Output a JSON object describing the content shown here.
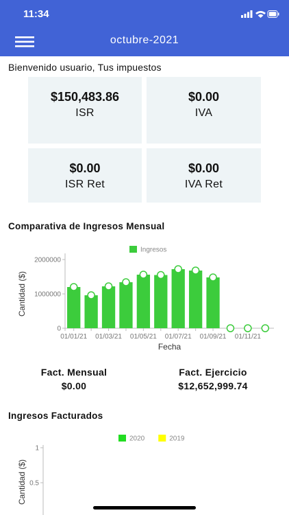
{
  "status_bar": {
    "time": "11:34"
  },
  "header": {
    "title": "octubre-2021"
  },
  "welcome": "Bienvenido usuario, Tus impuestos",
  "cards": [
    {
      "value": "$150,483.86",
      "label": "ISR"
    },
    {
      "value": "$0.00",
      "label": "IVA"
    },
    {
      "value": "$0.00",
      "label": "ISR Ret"
    },
    {
      "value": "$0.00",
      "label": "IVA Ret"
    }
  ],
  "monthly_chart": {
    "title": "Comparativa de Ingresos Mensual",
    "chart_data": {
      "type": "bar",
      "xlabel": "Fecha",
      "ylabel": "Cantidad ($)",
      "categories": [
        "01/01/21",
        null,
        "01/03/21",
        null,
        "01/05/21",
        null,
        "01/07/21",
        null,
        "01/09/21",
        null,
        "01/11/21",
        null
      ],
      "series": [
        {
          "name": "Ingresos",
          "color": "#3ccc3c",
          "values": [
            1200000,
            960000,
            1220000,
            1340000,
            1560000,
            1550000,
            1720000,
            1680000,
            1480000,
            0,
            0,
            0
          ]
        }
      ],
      "ylim": [
        0,
        2100000
      ],
      "yticks": [
        0,
        1000000,
        2000000
      ]
    }
  },
  "totals": [
    {
      "label": "Fact. Mensual",
      "value": "$0.00"
    },
    {
      "label": "Fact. Ejercicio",
      "value": "$12,652,999.74"
    }
  ],
  "invoiced_chart": {
    "title": "Ingresos Facturados",
    "chart_data": {
      "type": "bar",
      "ylabel": "Cantidad ($)",
      "series": [
        {
          "name": "2020",
          "color": "#22dd22"
        },
        {
          "name": "2019",
          "color": "#ffff00"
        }
      ],
      "ylim": [
        0,
        1
      ],
      "yticks": [
        0.5,
        1
      ]
    }
  }
}
